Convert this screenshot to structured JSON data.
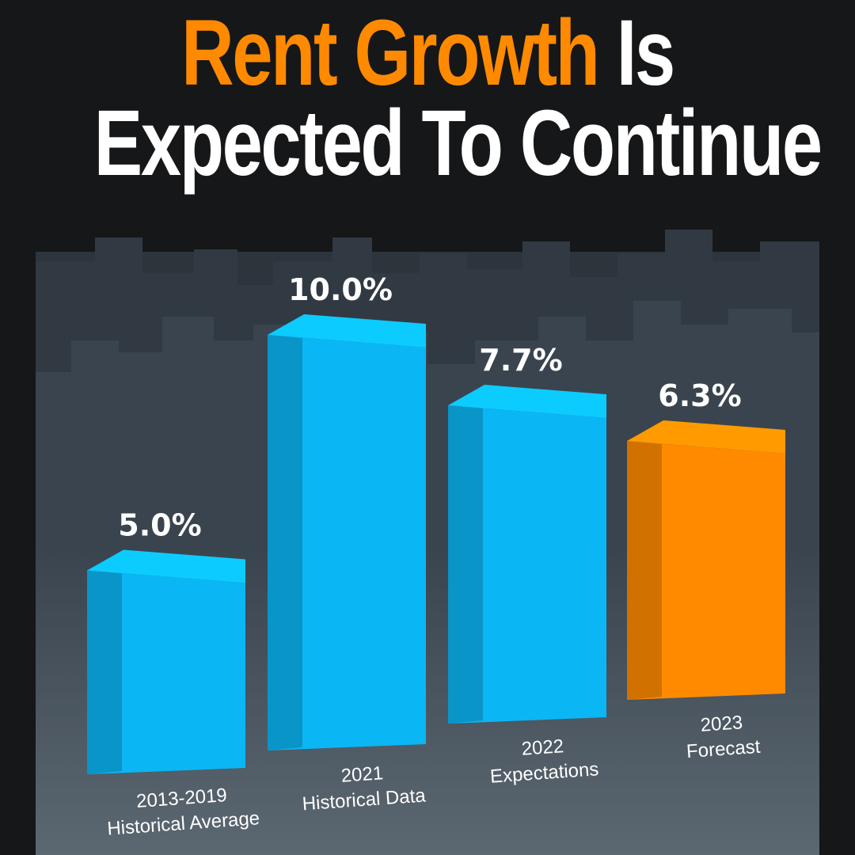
{
  "title": {
    "part1_accent": "Rent Growth",
    "part1_rest": " Is",
    "line2": "Expected To Continue"
  },
  "colors": {
    "background": "#161719",
    "skyline": "#333c45",
    "floor": "#3f4a55",
    "bar_blue": "#0bb6f4",
    "bar_orange": "#ff8a00",
    "title_accent": "#ff8a00",
    "text": "#ffffff"
  },
  "chart_data": {
    "type": "bar",
    "title": "Rent Growth Is Expected To Continue",
    "categories": [
      [
        "2013-2019",
        "Historical Average"
      ],
      [
        "2021",
        "Historical Data"
      ],
      [
        "2022",
        "Expectations"
      ],
      [
        "2023",
        "Forecast"
      ]
    ],
    "values": [
      5.0,
      10.0,
      7.7,
      6.3
    ],
    "value_labels": [
      "5.0%",
      "10.0%",
      "7.7%",
      "6.3%"
    ],
    "unit": "%",
    "bar_colors": [
      "blue",
      "blue",
      "blue",
      "orange"
    ],
    "ylim": [
      0,
      10
    ],
    "grid": false,
    "legend": "none"
  }
}
